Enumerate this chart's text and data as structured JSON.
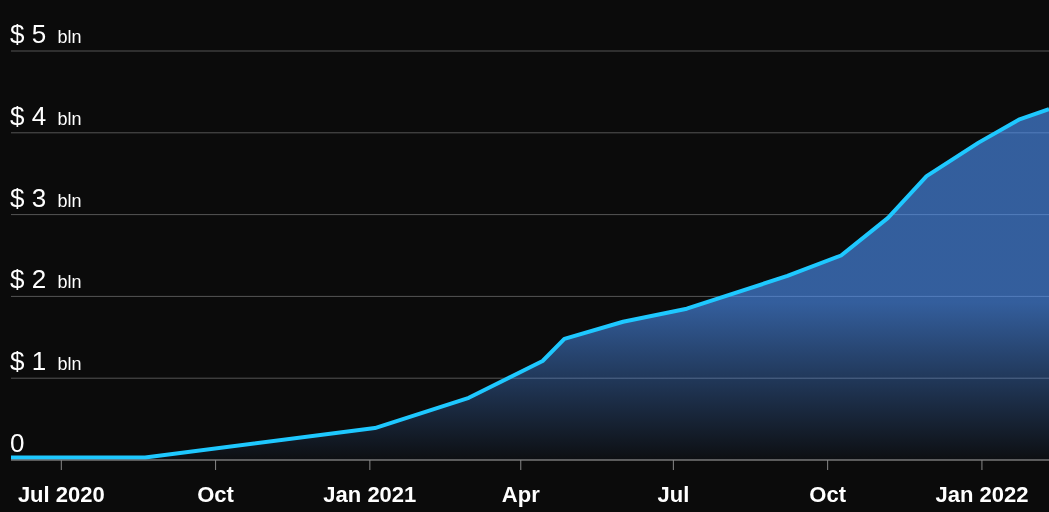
{
  "chart_data": {
    "type": "area",
    "x": [
      "2020-06-01",
      "2020-08-20",
      "2021-01-04",
      "2021-03-01",
      "2021-04-14",
      "2021-04-27",
      "2021-06-01",
      "2021-07-09",
      "2021-09-07",
      "2021-10-09",
      "2021-11-06",
      "2021-11-29",
      "2021-12-30",
      "2022-01-23",
      "2022-02-10"
    ],
    "series": [
      {
        "color": "#1ec8ff",
        "values": [
          0.03,
          0.03,
          0.39,
          0.76,
          1.21,
          1.48,
          1.69,
          1.85,
          2.25,
          2.5,
          2.96,
          3.47,
          3.88,
          4.16,
          4.29
        ]
      }
    ],
    "xlim": [
      "2020-06-01",
      "2022-02-10"
    ],
    "xticks": [
      {
        "value": "2020-07-01",
        "label": "Jul 2020"
      },
      {
        "value": "2020-10-01",
        "label": "Oct"
      },
      {
        "value": "2021-01-01",
        "label": "Jan 2021"
      },
      {
        "value": "2021-04-01",
        "label": "Apr"
      },
      {
        "value": "2021-07-01",
        "label": "Jul"
      },
      {
        "value": "2021-10-01",
        "label": "Oct"
      },
      {
        "value": "2022-01-01",
        "label": "Jan 2022"
      }
    ],
    "ylim": [
      0,
      5
    ],
    "yticks": [
      {
        "value": 0,
        "label": "0"
      },
      {
        "value": 1,
        "label": "$ 1 bln"
      },
      {
        "value": 2,
        "label": "$ 2 bln"
      },
      {
        "value": 3,
        "label": "$ 3 bln"
      },
      {
        "value": 4,
        "label": "$ 4 bln"
      },
      {
        "value": 5,
        "label": "$ 5 bln"
      }
    ],
    "grid": "y"
  }
}
